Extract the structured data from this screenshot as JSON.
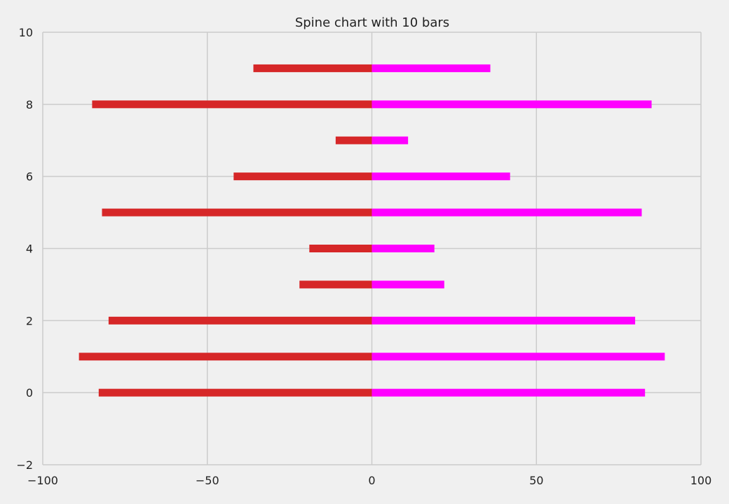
{
  "chart_data": {
    "type": "bar",
    "orientation": "horizontal",
    "title": "Spine chart with 10 bars",
    "xlabel": "",
    "ylabel": "",
    "xlim": [
      -100,
      100
    ],
    "ylim": [
      -2,
      10
    ],
    "xticks": [
      -100,
      -50,
      0,
      50,
      100
    ],
    "yticks": [
      -2,
      0,
      2,
      4,
      6,
      8,
      10
    ],
    "xtick_labels": [
      "−100",
      "−50",
      "0",
      "50",
      "100"
    ],
    "ytick_labels": [
      "−2",
      "0",
      "2",
      "4",
      "6",
      "8",
      "10"
    ],
    "grid": true,
    "categories": [
      0,
      1,
      2,
      3,
      4,
      5,
      6,
      7,
      8,
      9
    ],
    "series": [
      {
        "values": [
          -83,
          -89,
          -80,
          -22,
          -19,
          -82,
          -42,
          -11,
          -85,
          -36
        ],
        "color": "#d62728"
      },
      {
        "values": [
          83,
          89,
          80,
          22,
          19,
          82,
          42,
          11,
          85,
          36
        ],
        "color": "#ff00ff"
      }
    ],
    "colors": {
      "background": "#f0f0f0",
      "grid": "#cbcbcb",
      "negative_bar": "#d62728",
      "positive_bar": "#ff00ff"
    }
  }
}
